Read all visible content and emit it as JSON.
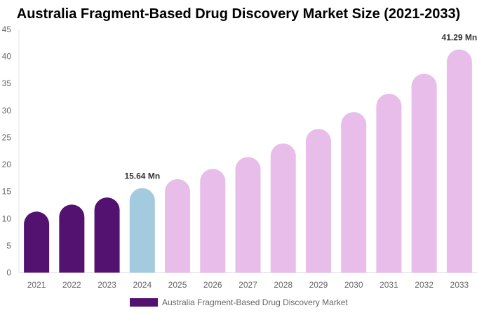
{
  "chart_data": {
    "type": "bar",
    "title": "Australia Fragment-Based Drug Discovery Market Size (2021-2033)",
    "categories": [
      "2021",
      "2022",
      "2023",
      "2024",
      "2025",
      "2026",
      "2027",
      "2028",
      "2029",
      "2030",
      "2031",
      "2032",
      "2033"
    ],
    "series": [
      {
        "name": "Australia Fragment-Based Drug Discovery Market",
        "values": [
          11.3,
          12.6,
          13.9,
          15.64,
          17.3,
          19.2,
          21.4,
          23.9,
          26.6,
          29.7,
          33.1,
          36.8,
          41.29
        ]
      }
    ],
    "data_labels": {
      "3": "15.64 Mn",
      "12": "41.29 Mn"
    },
    "ylim": [
      0,
      45
    ],
    "yticks": [
      0,
      5,
      10,
      15,
      20,
      25,
      30,
      35,
      40,
      45
    ],
    "grid": false,
    "legend_position": "bottom",
    "colors": {
      "historical": "#541270",
      "base_year": "#A3CADF",
      "forecast": "#E8BDE9",
      "legend": "#541270"
    }
  }
}
